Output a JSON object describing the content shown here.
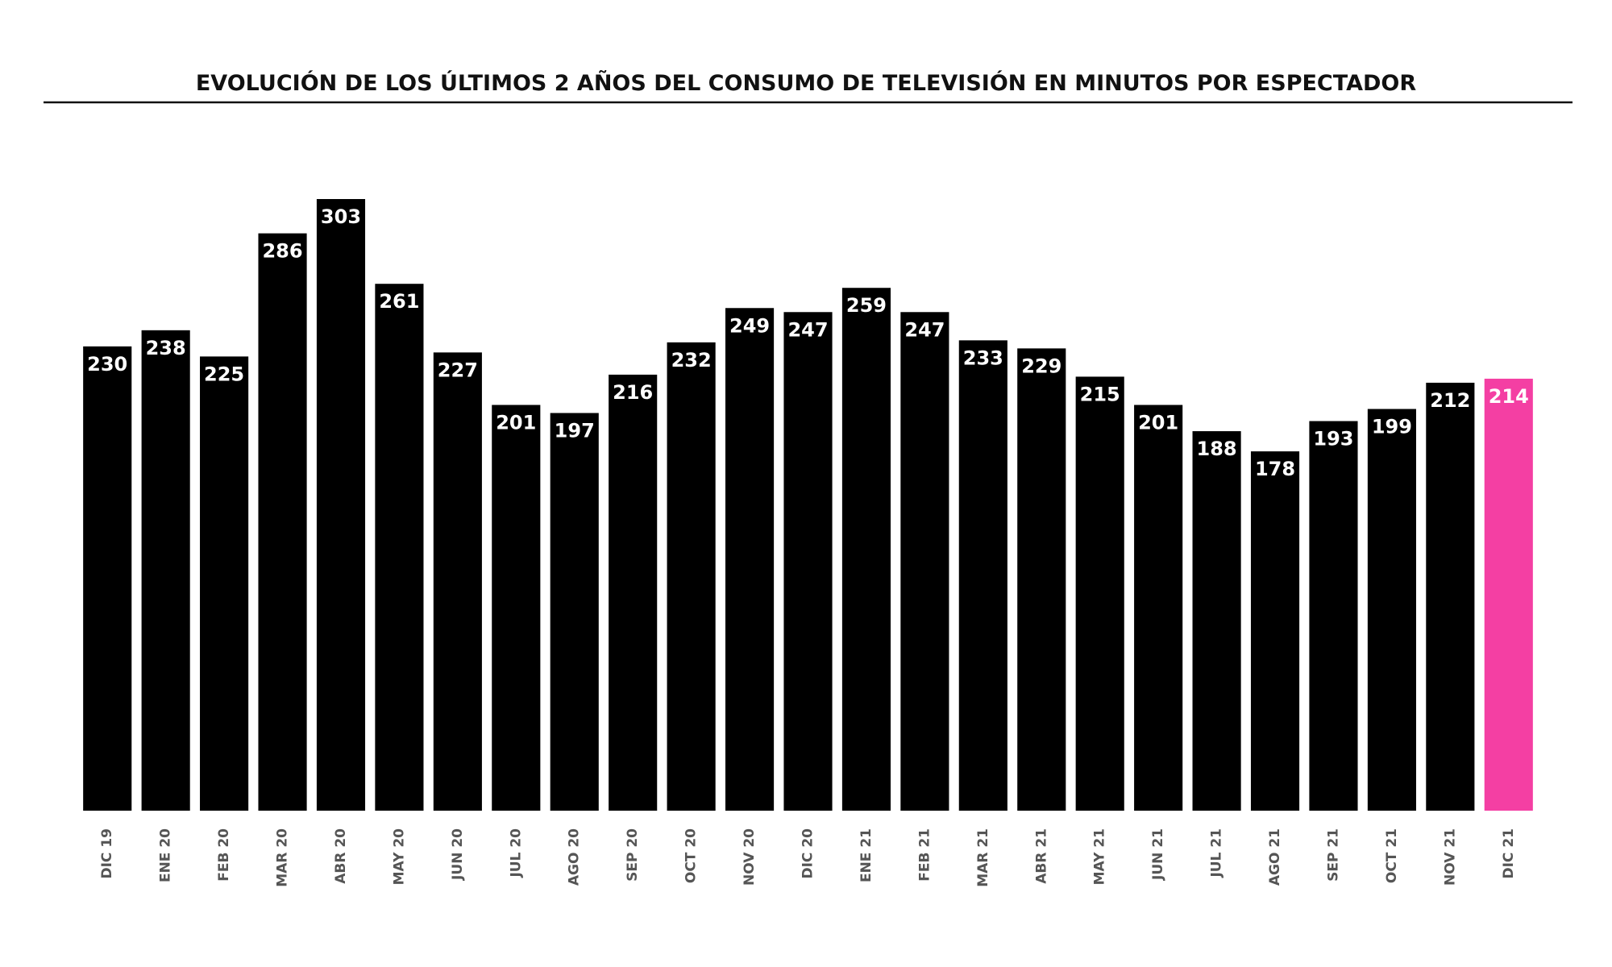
{
  "chart_data": {
    "type": "bar",
    "title": "EVOLUCIÓN DE LOS ÚLTIMOS 2 AÑOS DEL CONSUMO DE TELEVISIÓN EN MINUTOS POR ESPECTADOR",
    "categories": [
      "DIC 19",
      "ENE 20",
      "FEB 20",
      "MAR 20",
      "ABR 20",
      "MAY 20",
      "JUN 20",
      "JUL 20",
      "AGO 20",
      "SEP 20",
      "OCT 20",
      "NOV 20",
      "DIC 20",
      "ENE 21",
      "FEB 21",
      "MAR 21",
      "ABR 21",
      "MAY 21",
      "JUN 21",
      "JUL 21",
      "AGO 21",
      "SEP 21",
      "OCT 21",
      "NOV 21",
      "DIC 21"
    ],
    "values": [
      230,
      238,
      225,
      286,
      303,
      261,
      227,
      201,
      197,
      216,
      232,
      249,
      247,
      259,
      247,
      233,
      229,
      215,
      201,
      188,
      178,
      193,
      199,
      212,
      214
    ],
    "colors": [
      "#000000",
      "#000000",
      "#000000",
      "#000000",
      "#000000",
      "#000000",
      "#000000",
      "#000000",
      "#000000",
      "#000000",
      "#000000",
      "#000000",
      "#000000",
      "#000000",
      "#000000",
      "#000000",
      "#000000",
      "#000000",
      "#000000",
      "#000000",
      "#000000",
      "#000000",
      "#000000",
      "#000000",
      "#f43fa3"
    ]
  }
}
